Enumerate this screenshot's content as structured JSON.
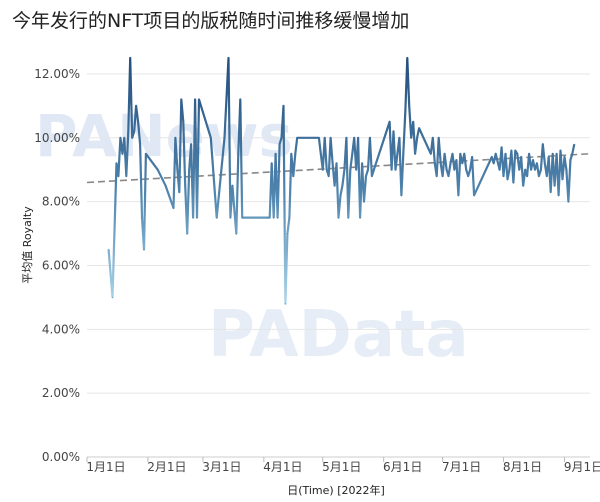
{
  "title": "今年发行的NFT项目的版税随时间推移缓慢增加",
  "watermarks": [
    "PANews",
    "PAData"
  ],
  "chart_data": {
    "type": "line",
    "title": "今年发行的NFT项目的版税随时间推移缓慢增加",
    "xlabel": "日(Time) [2022年]",
    "ylabel": "平均值 Royalty",
    "ylim": [
      0,
      12.5
    ],
    "yticks": [
      0,
      2,
      4,
      6,
      8,
      10,
      12
    ],
    "ytick_labels": [
      "0.00%",
      "2.00%",
      "4.00%",
      "6.00%",
      "8.00%",
      "10.00%",
      "12.00%"
    ],
    "xlim": [
      0,
      256
    ],
    "xticks": [
      0,
      31,
      59,
      90,
      120,
      151,
      181,
      212,
      243
    ],
    "xtick_labels": [
      "1月1日",
      "2月1日",
      "3月1日",
      "4月1日",
      "5月1日",
      "6月1日",
      "7月1日",
      "8月1日",
      "9月1日"
    ],
    "grid": true,
    "series": [
      {
        "values": [
          [
            11,
            6.5
          ],
          [
            13,
            5.0
          ],
          [
            15,
            9.2
          ],
          [
            16,
            8.8
          ],
          [
            17,
            10.0
          ],
          [
            18,
            9.5
          ],
          [
            19,
            10.0
          ],
          [
            20,
            8.8
          ],
          [
            21,
            10.2
          ],
          [
            22,
            12.5
          ],
          [
            23,
            10.0
          ],
          [
            24,
            10.2
          ],
          [
            25,
            11.0
          ],
          [
            26,
            10.5
          ],
          [
            27,
            9.8
          ],
          [
            28,
            7.5
          ],
          [
            29,
            6.5
          ],
          [
            30,
            9.5
          ],
          [
            36,
            9.0
          ],
          [
            40,
            8.5
          ],
          [
            44,
            7.8
          ],
          [
            45,
            10.0
          ],
          [
            46,
            9.0
          ],
          [
            47,
            8.3
          ],
          [
            48,
            11.2
          ],
          [
            49,
            10.5
          ],
          [
            50,
            8.5
          ],
          [
            51,
            7.0
          ],
          [
            52,
            9.0
          ],
          [
            53,
            9.8
          ],
          [
            54,
            7.5
          ],
          [
            55,
            11.2
          ],
          [
            56,
            7.5
          ],
          [
            57,
            11.2
          ],
          [
            63,
            10.0
          ],
          [
            66,
            7.5
          ],
          [
            70,
            10.0
          ],
          [
            72,
            12.5
          ],
          [
            73,
            7.5
          ],
          [
            74,
            8.5
          ],
          [
            76,
            7.0
          ],
          [
            77,
            9.5
          ],
          [
            78,
            11.2
          ],
          [
            79,
            7.5
          ],
          [
            92,
            7.5
          ],
          [
            93,
            7.5
          ],
          [
            94,
            9.2
          ],
          [
            95,
            7.5
          ],
          [
            96,
            9.5
          ],
          [
            97,
            7.5
          ],
          [
            98,
            9.8
          ],
          [
            99,
            10.0
          ],
          [
            100,
            11.0
          ],
          [
            101,
            4.8
          ],
          [
            102,
            7.0
          ],
          [
            103,
            7.5
          ],
          [
            104,
            9.5
          ],
          [
            105,
            8.8
          ],
          [
            106,
            9.5
          ],
          [
            107,
            10.0
          ],
          [
            118,
            10.0
          ],
          [
            119,
            9.5
          ],
          [
            120,
            9.0
          ],
          [
            121,
            10.0
          ],
          [
            122,
            9.0
          ],
          [
            123,
            8.8
          ],
          [
            124,
            10.0
          ],
          [
            125,
            9.2
          ],
          [
            126,
            8.5
          ],
          [
            127,
            9.2
          ],
          [
            128,
            7.5
          ],
          [
            129,
            8.2
          ],
          [
            130,
            8.5
          ],
          [
            131,
            9.0
          ],
          [
            132,
            10.0
          ],
          [
            133,
            7.5
          ],
          [
            134,
            9.0
          ],
          [
            135,
            9.5
          ],
          [
            136,
            10.0
          ],
          [
            137,
            9.0
          ],
          [
            138,
            10.0
          ],
          [
            139,
            7.5
          ],
          [
            140,
            9.2
          ],
          [
            141,
            8.0
          ],
          [
            142,
            8.8
          ],
          [
            143,
            9.0
          ],
          [
            144,
            10.0
          ],
          [
            145,
            8.8
          ],
          [
            146,
            9.0
          ],
          [
            154,
            10.5
          ],
          [
            155,
            9.0
          ],
          [
            156,
            10.2
          ],
          [
            157,
            9.0
          ],
          [
            158,
            9.5
          ],
          [
            159,
            10.0
          ],
          [
            160,
            8.2
          ],
          [
            161,
            9.5
          ],
          [
            162,
            10.8
          ],
          [
            163,
            12.5
          ],
          [
            164,
            11.0
          ],
          [
            165,
            10.0
          ],
          [
            166,
            10.5
          ],
          [
            167,
            9.5
          ],
          [
            168,
            10.0
          ],
          [
            169,
            10.3
          ],
          [
            175,
            9.5
          ],
          [
            176,
            10.0
          ],
          [
            177,
            9.2
          ],
          [
            178,
            8.8
          ],
          [
            179,
            10.0
          ],
          [
            180,
            9.2
          ],
          [
            181,
            8.8
          ],
          [
            182,
            9.5
          ],
          [
            183,
            9.0
          ],
          [
            184,
            8.8
          ],
          [
            185,
            9.2
          ],
          [
            186,
            9.5
          ],
          [
            187,
            9.0
          ],
          [
            188,
            9.3
          ],
          [
            189,
            8.2
          ],
          [
            190,
            9.5
          ],
          [
            191,
            9.2
          ],
          [
            192,
            9.5
          ],
          [
            193,
            9.0
          ],
          [
            194,
            8.8
          ],
          [
            195,
            9.0
          ],
          [
            196,
            9.4
          ],
          [
            197,
            8.2
          ],
          [
            206,
            9.4
          ],
          [
            207,
            9.2
          ],
          [
            208,
            9.5
          ],
          [
            210,
            9.0
          ],
          [
            211,
            9.7
          ],
          [
            212,
            8.8
          ],
          [
            213,
            9.5
          ],
          [
            214,
            8.7
          ],
          [
            215,
            9.0
          ],
          [
            216,
            9.6
          ],
          [
            217,
            8.6
          ],
          [
            218,
            9.6
          ],
          [
            219,
            9.5
          ],
          [
            220,
            9.0
          ],
          [
            221,
            9.4
          ],
          [
            222,
            8.5
          ],
          [
            223,
            9.0
          ],
          [
            224,
            8.8
          ],
          [
            225,
            9.5
          ],
          [
            226,
            9.0
          ],
          [
            227,
            9.3
          ],
          [
            228,
            9.0
          ],
          [
            229,
            9.2
          ],
          [
            230,
            8.8
          ],
          [
            231,
            9.0
          ],
          [
            232,
            9.8
          ],
          [
            233,
            9.2
          ],
          [
            234,
            8.8
          ],
          [
            235,
            9.4
          ],
          [
            236,
            8.3
          ],
          [
            237,
            9.5
          ],
          [
            238,
            8.5
          ],
          [
            239,
            9.5
          ],
          [
            240,
            8.2
          ],
          [
            241,
            9.6
          ],
          [
            242,
            8.7
          ],
          [
            243,
            9.4
          ],
          [
            244,
            9.0
          ],
          [
            245,
            8.0
          ],
          [
            246,
            9.3
          ],
          [
            247,
            9.5
          ],
          [
            248,
            9.8
          ]
        ]
      }
    ],
    "trendline": {
      "x": [
        0,
        256
      ],
      "y": [
        8.6,
        9.5
      ]
    },
    "colors": {
      "line_dark": "#2e5f8e",
      "line_light": "#9fcde4",
      "trend": "#888888",
      "grid": "#e6e6e6"
    }
  }
}
